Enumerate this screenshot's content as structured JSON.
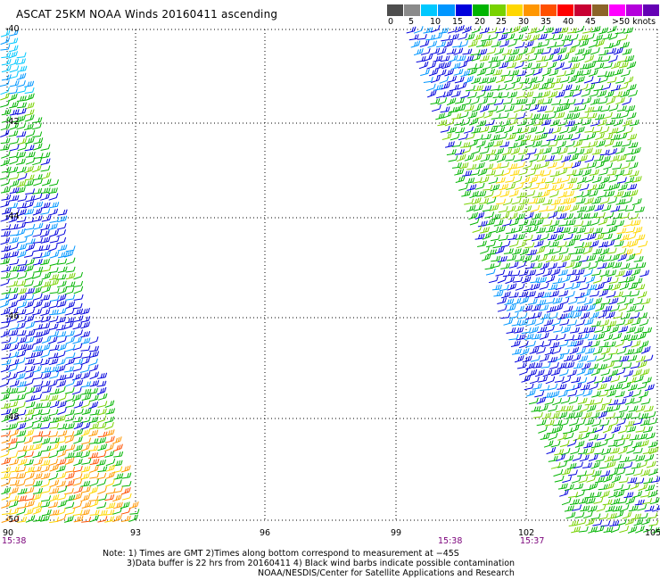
{
  "title": "ASCAT 25KM NOAA Winds 20160411 ascending",
  "legend": {
    "colors": [
      "#4d4d4d",
      "#8a8a8a",
      "#00c8ff",
      "#0096ff",
      "#0000dc",
      "#00b400",
      "#78d200",
      "#ffd700",
      "#ff9600",
      "#ff5000",
      "#ff0000",
      "#c80032",
      "#8c6428",
      "#ff00ff",
      "#b400dc",
      "#6400b4"
    ],
    "labels": [
      "0",
      "5",
      "10",
      "15",
      "20",
      "25",
      "30",
      "35",
      "40",
      "45",
      ">50 knots"
    ]
  },
  "map": {
    "lat_labels": [
      "-40",
      "-42",
      "-44",
      "-46",
      "-48",
      "-50"
    ],
    "lon_labels": [
      "90",
      "93",
      "96",
      "99",
      "102",
      "105"
    ],
    "grid": "dotted"
  },
  "times": [
    "15:38",
    "15:38",
    "15:37"
  ],
  "notes": {
    "line1": "Note: 1) Times are GMT 2)Times along bottom correspond to measurement at −45S",
    "line2": "3)Data buffer is 22 hrs from 20160411 4) Black wind barbs indicate possible contamination",
    "line3": "NOAA/NESDIS/Center for Satellite Applications and Research"
  }
}
